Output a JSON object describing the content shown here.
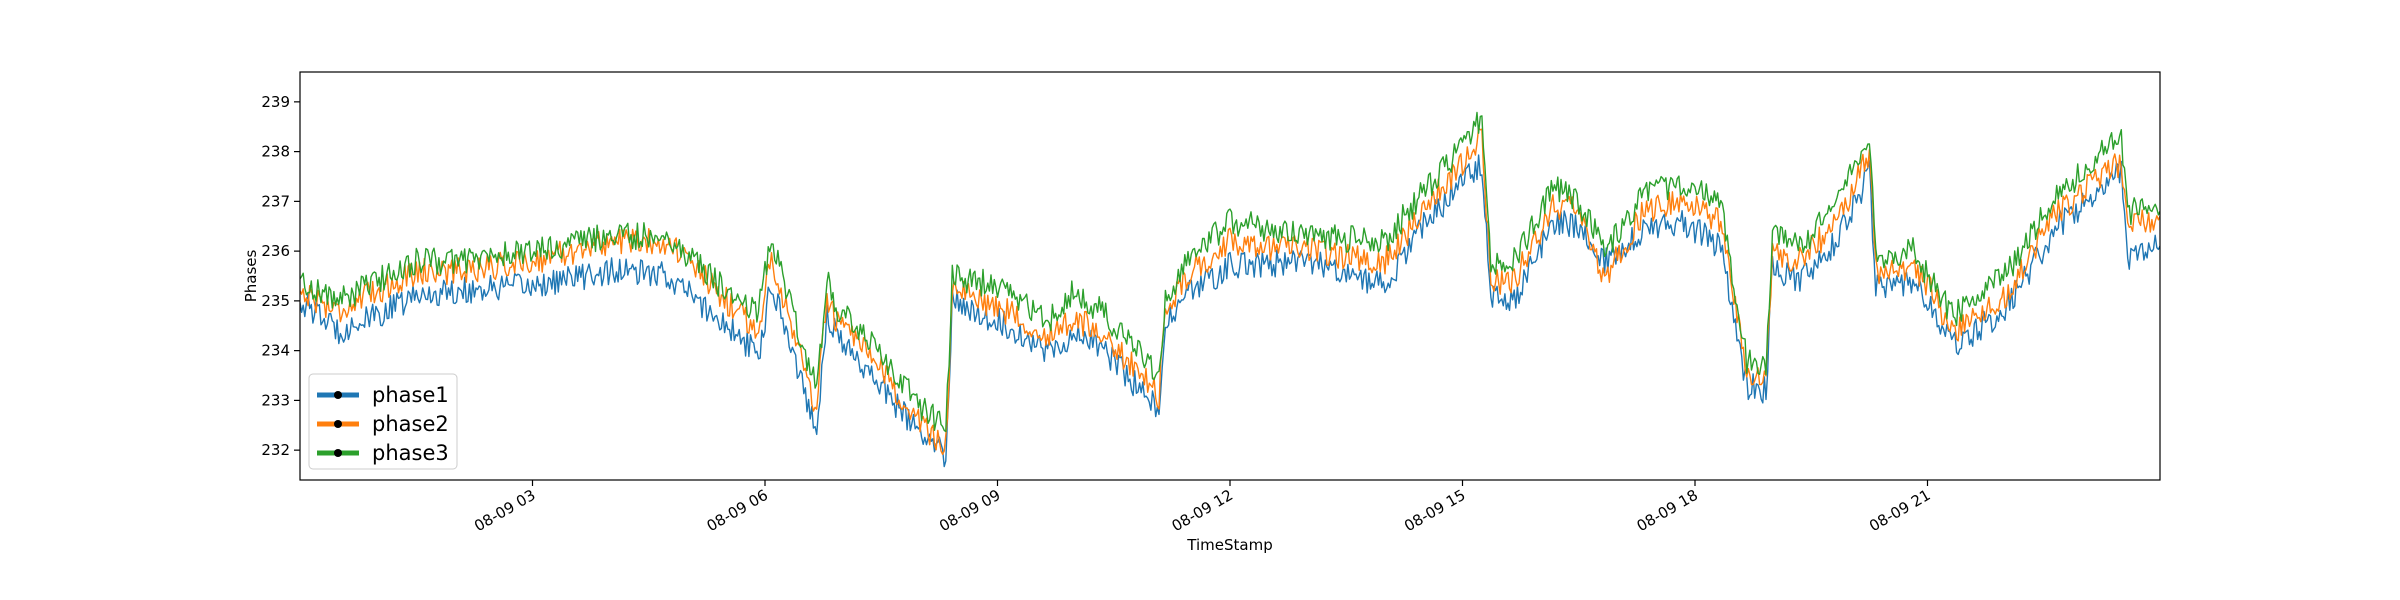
{
  "chart_data": {
    "type": "line",
    "xlabel": "TimeStamp",
    "ylabel": "Phases",
    "xlim": [
      "2000-08-09 00:00",
      "2000-08-10 00:00"
    ],
    "ylim": [
      231.4,
      239.6
    ],
    "x_ticks": [
      {
        "value": "2000-08-09 03:00",
        "label": "08-09 03"
      },
      {
        "value": "2000-08-09 06:00",
        "label": "08-09 06"
      },
      {
        "value": "2000-08-09 09:00",
        "label": "08-09 09"
      },
      {
        "value": "2000-08-09 12:00",
        "label": "08-09 12"
      },
      {
        "value": "2000-08-09 15:00",
        "label": "08-09 15"
      },
      {
        "value": "2000-08-09 18:00",
        "label": "08-09 18"
      },
      {
        "value": "2000-08-09 21:00",
        "label": "08-09 21"
      }
    ],
    "y_ticks": [
      232,
      233,
      234,
      235,
      236,
      237,
      238,
      239
    ],
    "grid": false,
    "legend_position": "lower-left",
    "x": [
      "2000-08-09 00:00",
      "2000-08-09 00:30",
      "2000-08-09 01:00",
      "2000-08-09 01:30",
      "2000-08-09 02:00",
      "2000-08-09 03:00",
      "2000-08-09 04:00",
      "2000-08-09 04:45",
      "2000-08-09 05:30",
      "2000-08-09 05:55",
      "2000-08-09 06:05",
      "2000-08-09 06:40",
      "2000-08-09 06:48",
      "2000-08-09 06:55",
      "2000-08-09 07:30",
      "2000-08-09 08:00",
      "2000-08-09 08:20",
      "2000-08-09 08:25",
      "2000-08-09 09:00",
      "2000-08-09 09:40",
      "2000-08-09 10:00",
      "2000-08-09 10:20",
      "2000-08-09 10:40",
      "2000-08-09 11:05",
      "2000-08-09 11:10",
      "2000-08-09 11:30",
      "2000-08-09 12:00",
      "2000-08-09 13:00",
      "2000-08-09 14:00",
      "2000-08-09 14:30",
      "2000-08-09 15:00",
      "2000-08-09 15:15",
      "2000-08-09 15:22",
      "2000-08-09 15:40",
      "2000-08-09 16:10",
      "2000-08-09 16:30",
      "2000-08-09 16:50",
      "2000-08-09 17:20",
      "2000-08-09 17:50",
      "2000-08-09 18:20",
      "2000-08-09 18:40",
      "2000-08-09 18:55",
      "2000-08-09 19:00",
      "2000-08-09 19:20",
      "2000-08-09 19:40",
      "2000-08-09 20:00",
      "2000-08-09 20:15",
      "2000-08-09 20:20",
      "2000-08-09 20:50",
      "2000-08-09 21:00",
      "2000-08-09 21:20",
      "2000-08-09 22:00",
      "2000-08-09 22:40",
      "2000-08-09 23:00",
      "2000-08-09 23:30",
      "2000-08-09 23:35",
      "2000-08-10 00:00"
    ],
    "series": [
      {
        "name": "phase1",
        "color": "#1f77b4",
        "values": [
          235.0,
          234.4,
          234.7,
          235.1,
          235.2,
          235.3,
          235.6,
          235.5,
          234.5,
          233.9,
          235.4,
          232.4,
          234.8,
          234.3,
          233.3,
          232.3,
          231.9,
          235.0,
          234.6,
          234.0,
          234.3,
          234.1,
          233.5,
          232.8,
          234.5,
          235.2,
          235.7,
          235.8,
          235.3,
          236.5,
          237.4,
          237.8,
          235.1,
          235.0,
          236.6,
          236.5,
          235.8,
          236.4,
          236.6,
          236.1,
          233.3,
          233.2,
          235.7,
          235.4,
          235.8,
          236.7,
          237.6,
          235.3,
          235.4,
          235.0,
          234.1,
          234.8,
          236.5,
          236.9,
          237.6,
          235.8,
          236.1
        ]
      },
      {
        "name": "phase2",
        "color": "#ff7f0e",
        "values": [
          235.2,
          234.8,
          235.2,
          235.6,
          235.6,
          235.8,
          236.2,
          236.2,
          235.0,
          234.4,
          235.9,
          232.8,
          235.1,
          234.6,
          233.6,
          232.5,
          232.1,
          235.2,
          234.9,
          234.3,
          234.6,
          234.4,
          233.8,
          233.1,
          234.8,
          235.6,
          236.2,
          236.0,
          235.8,
          236.8,
          237.8,
          238.3,
          235.4,
          235.4,
          236.9,
          236.8,
          235.4,
          236.8,
          237.0,
          236.6,
          233.5,
          233.4,
          236.0,
          235.8,
          236.3,
          237.1,
          238.0,
          235.6,
          235.6,
          235.3,
          234.4,
          235.1,
          236.8,
          237.2,
          237.8,
          236.5,
          236.7
        ]
      },
      {
        "name": "phase3",
        "color": "#2ca02c",
        "values": [
          235.4,
          235.0,
          235.4,
          235.8,
          235.8,
          236.0,
          236.3,
          236.3,
          235.2,
          234.8,
          236.3,
          233.2,
          235.4,
          234.9,
          233.9,
          232.9,
          232.4,
          235.5,
          235.3,
          234.6,
          235.2,
          234.8,
          234.2,
          233.5,
          235.1,
          235.9,
          236.6,
          236.3,
          236.2,
          237.2,
          238.1,
          238.7,
          235.7,
          235.8,
          237.3,
          237.0,
          236.0,
          237.1,
          237.4,
          236.9,
          233.8,
          233.7,
          236.3,
          236.1,
          236.6,
          237.5,
          238.3,
          235.9,
          236.0,
          235.5,
          234.7,
          235.5,
          237.1,
          237.6,
          238.4,
          236.8,
          236.8
        ]
      }
    ]
  }
}
